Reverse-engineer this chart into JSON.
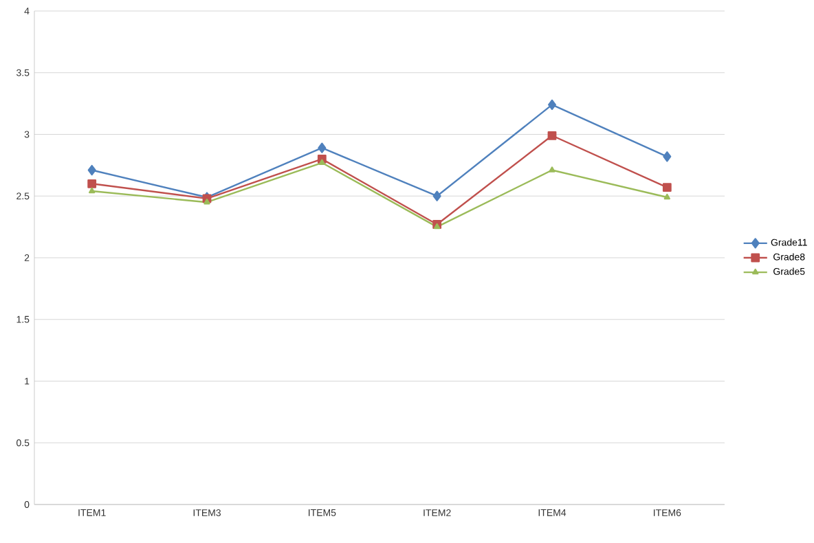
{
  "chart_data": {
    "type": "line",
    "categories": [
      "ITEM1",
      "ITEM3",
      "ITEM5",
      "ITEM2",
      "ITEM4",
      "ITEM6"
    ],
    "series": [
      {
        "name": "Grade11",
        "color": "#4f81bd",
        "marker": "diamond",
        "values": [
          2.71,
          2.49,
          2.89,
          2.5,
          3.24,
          2.82
        ]
      },
      {
        "name": "Grade8",
        "color": "#c0504d",
        "marker": "square",
        "values": [
          2.6,
          2.48,
          2.8,
          2.27,
          2.99,
          2.57
        ]
      },
      {
        "name": "Grade5",
        "color": "#9bbb59",
        "marker": "triangle",
        "values": [
          2.54,
          2.45,
          2.77,
          2.25,
          2.71,
          2.49
        ]
      }
    ],
    "ylim": [
      0,
      4
    ],
    "yticks": [
      0,
      0.5,
      1,
      1.5,
      2,
      2.5,
      3,
      3.5,
      4
    ],
    "grid": "y",
    "legend": "right",
    "line_style": "solid"
  }
}
